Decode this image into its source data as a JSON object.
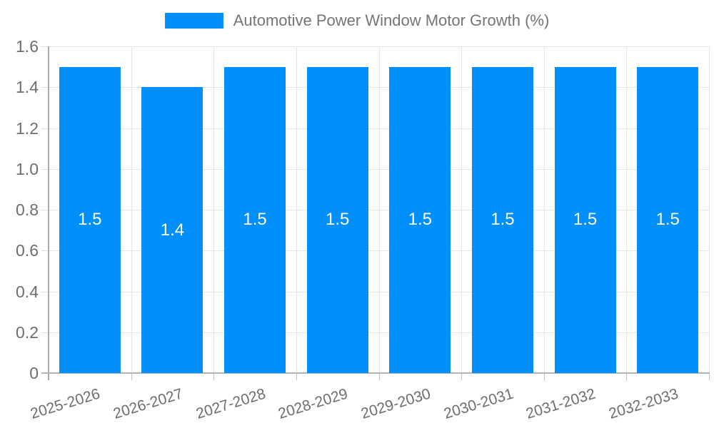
{
  "chart_data": {
    "type": "bar",
    "title": "Automotive Power Window Motor Growth (%)",
    "categories": [
      "2025-2026",
      "2026-2027",
      "2027-2028",
      "2028-2029",
      "2029-2030",
      "2030-2031",
      "2031-2032",
      "2032-2033"
    ],
    "values": [
      1.5,
      1.4,
      1.5,
      1.5,
      1.5,
      1.5,
      1.5,
      1.5
    ],
    "bar_value_labels": [
      "1.5",
      "1.4",
      "1.5",
      "1.5",
      "1.5",
      "1.5",
      "1.5",
      "1.5"
    ],
    "xlabel": "",
    "ylabel": "",
    "ylim": [
      0,
      1.6
    ],
    "ytick_labels": [
      "0",
      "0.2",
      "0.4",
      "0.6",
      "0.8",
      "1.0",
      "1.2",
      "1.4",
      "1.6"
    ],
    "grid": true,
    "legend_position": "top",
    "legend_items": [
      {
        "label": "Automotive Power Window Motor Growth (%)",
        "color": "#008FFB"
      }
    ],
    "colors": {
      "bar": "#008FFB",
      "bar_label_text": "#FFFFFF",
      "axis_text": "#6E6E6E",
      "legend_text": "#757575",
      "gridline": "#E6E6E6",
      "axis_line": "#B5B5B5"
    }
  }
}
